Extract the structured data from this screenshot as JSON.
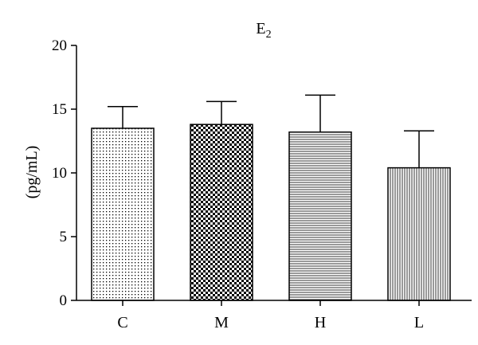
{
  "chart_data": {
    "type": "bar",
    "title": "E",
    "title_subscript": "2",
    "ylabel": "(pg/mL)",
    "xlabel": "",
    "ylim": [
      0,
      20
    ],
    "yticks": [
      0,
      5,
      10,
      15,
      20
    ],
    "categories": [
      "C",
      "M",
      "H",
      "L"
    ],
    "values": [
      13.5,
      13.8,
      13.2,
      10.4
    ],
    "errors": [
      1.7,
      1.8,
      2.9,
      2.9
    ],
    "patterns": [
      "dots",
      "checker",
      "horizontal-lines",
      "vertical-lines"
    ],
    "grid": false
  }
}
